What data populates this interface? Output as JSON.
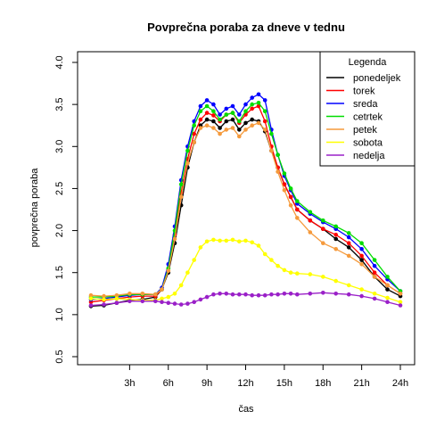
{
  "chart_data": {
    "type": "line",
    "title": "Povprečna poraba za dneve v tednu",
    "xlabel": "čas",
    "ylabel": "povprečna poraba",
    "xlim": [
      0,
      24
    ],
    "ylim": [
      0.5,
      4.0
    ],
    "x_ticks": [
      3,
      6,
      9,
      12,
      15,
      18,
      21,
      24
    ],
    "x_tick_labels": [
      "3h",
      "6h",
      "9h",
      "12h",
      "15h",
      "18h",
      "21h",
      "24h"
    ],
    "y_ticks": [
      0.5,
      1.0,
      1.5,
      2.0,
      2.5,
      3.0,
      3.5,
      4.0
    ],
    "y_tick_labels": [
      "0.5",
      "1.0",
      "1.5",
      "2.0",
      "2.5",
      "3.0",
      "3.5",
      "4.0"
    ],
    "grid": false,
    "legend": {
      "title": "Legenda",
      "position": "top-right"
    },
    "x": [
      0,
      1,
      2,
      3,
      4,
      5,
      5.5,
      6,
      6.5,
      7,
      7.5,
      8,
      8.5,
      9,
      9.5,
      10,
      10.5,
      11,
      11.5,
      12,
      12.5,
      13,
      13.5,
      14,
      14.5,
      15,
      15.5,
      16,
      17,
      18,
      19,
      20,
      21,
      22,
      23,
      24
    ],
    "series": [
      {
        "name": "ponedeljek",
        "color": "#000000",
        "values": [
          1.1,
          1.11,
          1.14,
          1.17,
          1.18,
          1.21,
          1.3,
          1.5,
          1.85,
          2.3,
          2.75,
          3.05,
          3.25,
          3.32,
          3.3,
          3.22,
          3.3,
          3.32,
          3.2,
          3.28,
          3.32,
          3.3,
          3.18,
          2.95,
          2.75,
          2.55,
          2.4,
          2.25,
          2.12,
          2.02,
          1.9,
          1.8,
          1.65,
          1.45,
          1.3,
          1.22
        ]
      },
      {
        "name": "torek",
        "color": "#ff0000",
        "values": [
          1.15,
          1.17,
          1.19,
          1.21,
          1.22,
          1.22,
          1.3,
          1.55,
          1.95,
          2.45,
          2.85,
          3.15,
          3.32,
          3.4,
          3.37,
          3.3,
          3.38,
          3.4,
          3.28,
          3.38,
          3.45,
          3.48,
          3.3,
          3.0,
          2.75,
          2.55,
          2.4,
          2.25,
          2.12,
          2.02,
          1.95,
          1.85,
          1.7,
          1.5,
          1.35,
          1.25
        ]
      },
      {
        "name": "sreda",
        "color": "#0000ff",
        "values": [
          1.18,
          1.19,
          1.21,
          1.23,
          1.24,
          1.24,
          1.32,
          1.6,
          2.05,
          2.6,
          3.0,
          3.3,
          3.48,
          3.55,
          3.5,
          3.38,
          3.45,
          3.48,
          3.38,
          3.5,
          3.58,
          3.62,
          3.55,
          3.2,
          2.9,
          2.65,
          2.48,
          2.32,
          2.2,
          2.1,
          2.02,
          1.92,
          1.78,
          1.58,
          1.42,
          1.28
        ]
      },
      {
        "name": "cetrtek",
        "color": "#00dd00",
        "values": [
          1.21,
          1.21,
          1.22,
          1.24,
          1.24,
          1.24,
          1.3,
          1.55,
          2.0,
          2.55,
          2.95,
          3.25,
          3.42,
          3.48,
          3.42,
          3.32,
          3.38,
          3.4,
          3.3,
          3.42,
          3.5,
          3.52,
          3.42,
          3.15,
          2.9,
          2.68,
          2.5,
          2.35,
          2.22,
          2.12,
          2.05,
          1.97,
          1.85,
          1.65,
          1.45,
          1.28
        ]
      },
      {
        "name": "petek",
        "color": "#f59a3c",
        "values": [
          1.23,
          1.22,
          1.23,
          1.25,
          1.25,
          1.24,
          1.3,
          1.52,
          1.9,
          2.4,
          2.8,
          3.05,
          3.22,
          3.25,
          3.22,
          3.15,
          3.2,
          3.22,
          3.12,
          3.2,
          3.25,
          3.28,
          3.2,
          2.95,
          2.7,
          2.48,
          2.3,
          2.15,
          1.98,
          1.85,
          1.78,
          1.7,
          1.6,
          1.45,
          1.35,
          1.25
        ]
      },
      {
        "name": "sobota",
        "color": "#ffff00",
        "values": [
          1.19,
          1.18,
          1.19,
          1.18,
          1.17,
          1.17,
          1.19,
          1.21,
          1.25,
          1.35,
          1.5,
          1.65,
          1.8,
          1.87,
          1.89,
          1.88,
          1.88,
          1.89,
          1.87,
          1.88,
          1.86,
          1.82,
          1.72,
          1.65,
          1.58,
          1.53,
          1.5,
          1.49,
          1.48,
          1.45,
          1.4,
          1.35,
          1.3,
          1.25,
          1.2,
          1.15
        ]
      },
      {
        "name": "nedelja",
        "color": "#9a20c8",
        "values": [
          1.11,
          1.12,
          1.14,
          1.16,
          1.16,
          1.16,
          1.15,
          1.14,
          1.13,
          1.12,
          1.13,
          1.15,
          1.18,
          1.21,
          1.24,
          1.25,
          1.25,
          1.24,
          1.24,
          1.24,
          1.23,
          1.23,
          1.23,
          1.24,
          1.24,
          1.25,
          1.25,
          1.24,
          1.25,
          1.26,
          1.25,
          1.24,
          1.22,
          1.19,
          1.15,
          1.11
        ]
      }
    ]
  }
}
